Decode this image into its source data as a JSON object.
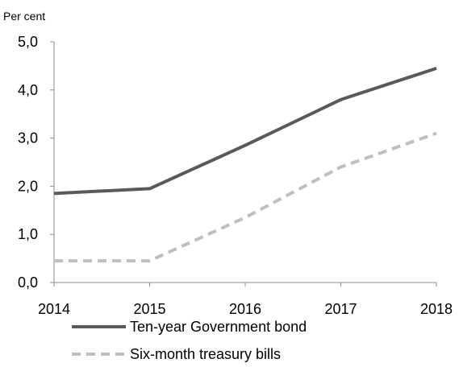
{
  "chart_data": {
    "type": "line",
    "ylabel": "Per cent",
    "categories": [
      "2014",
      "2015",
      "2016",
      "2017",
      "2018"
    ],
    "y_ticks": [
      "0,0",
      "1,0",
      "2,0",
      "3,0",
      "4,0",
      "5,0"
    ],
    "ylim": [
      0,
      5
    ],
    "grid": false,
    "legend_position": "bottom",
    "series": [
      {
        "name": "Ten-year Government bond",
        "values": [
          1.85,
          1.95,
          2.85,
          3.8,
          4.45
        ],
        "color": "#595959",
        "style": "solid"
      },
      {
        "name": "Six-month treasury bills",
        "values": [
          0.45,
          0.45,
          1.35,
          2.4,
          3.1
        ],
        "color": "#bfbfbf",
        "style": "dashed"
      }
    ]
  }
}
